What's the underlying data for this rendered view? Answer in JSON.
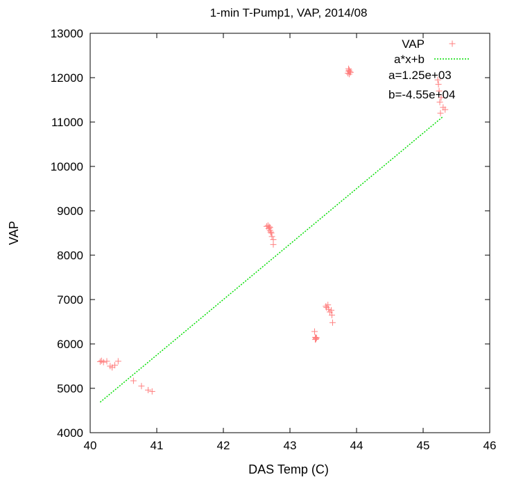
{
  "chart_data": {
    "type": "scatter",
    "title": "1-min T-Pump1, VAP, 2014/08",
    "xlabel": "DAS Temp (C)",
    "ylabel": "VAP",
    "xlim": [
      40,
      46
    ],
    "ylim": [
      4000,
      13000
    ],
    "xticks": [
      40,
      41,
      42,
      43,
      44,
      45,
      46
    ],
    "yticks": [
      4000,
      5000,
      6000,
      7000,
      8000,
      9000,
      10000,
      11000,
      12000,
      13000
    ],
    "grid": false,
    "legend_position": "top-right",
    "series": [
      {
        "name": "VAP",
        "marker": "plus",
        "color": "#ff7f7f",
        "x": [
          40.15,
          40.17,
          40.2,
          40.25,
          40.3,
          40.33,
          40.37,
          40.42,
          40.65,
          40.77,
          40.87,
          40.93,
          42.65,
          42.67,
          42.68,
          42.69,
          42.7,
          42.7,
          42.71,
          42.72,
          42.73,
          42.75,
          42.75,
          43.37,
          43.38,
          43.38,
          43.39,
          43.39,
          43.4,
          43.54,
          43.55,
          43.57,
          43.58,
          43.6,
          43.62,
          43.63,
          43.64,
          43.87,
          43.88,
          43.88,
          43.89,
          43.89,
          43.9,
          43.91,
          45.22,
          45.23,
          45.24,
          45.25,
          45.26,
          45.27,
          45.3,
          45.33
        ],
        "y": [
          5600,
          5620,
          5590,
          5610,
          5500,
          5470,
          5520,
          5610,
          5170,
          5050,
          4960,
          4930,
          8650,
          8670,
          8600,
          8640,
          8560,
          8620,
          8520,
          8500,
          8420,
          8350,
          8240,
          6280,
          6150,
          6100,
          6130,
          6110,
          6140,
          6850,
          6820,
          6880,
          6780,
          6720,
          6760,
          6650,
          6480,
          12100,
          12150,
          12200,
          12080,
          12170,
          12130,
          12120,
          11950,
          11850,
          11700,
          11450,
          11200,
          11550,
          11330,
          11280
        ]
      },
      {
        "name": "a*x+b",
        "type": "line",
        "color": "#00dd00",
        "dash": "dotted",
        "slope": 1250,
        "intercept": -45500,
        "x_range": [
          40.15,
          45.3
        ],
        "annotations": [
          "a=1.25e+03",
          "b=-4.55e+04"
        ]
      }
    ]
  }
}
